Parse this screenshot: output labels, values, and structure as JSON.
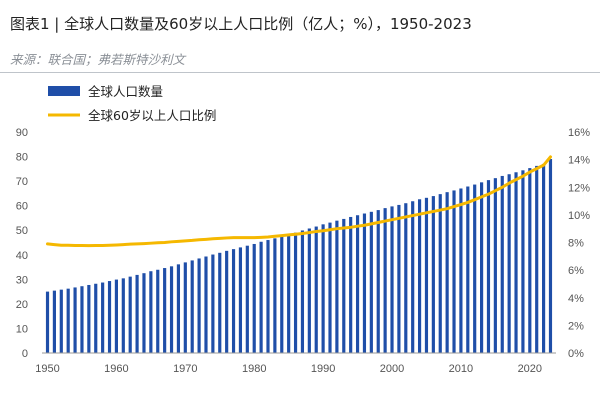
{
  "header": {
    "title": "图表1 | 全球人口数量及60岁以上人口比例（亿人；%），1950-2023",
    "source": "来源：联合国；弗若斯特沙利文"
  },
  "colors": {
    "bar": "#1f4ea8",
    "line": "#f5b800",
    "axis": "#999999",
    "rule": "#bfc4ca"
  },
  "chart_data": {
    "type": "bar",
    "grid": false,
    "legend_position": "top-left",
    "x": [
      1950,
      1951,
      1952,
      1953,
      1954,
      1955,
      1956,
      1957,
      1958,
      1959,
      1960,
      1961,
      1962,
      1963,
      1964,
      1965,
      1966,
      1967,
      1968,
      1969,
      1970,
      1971,
      1972,
      1973,
      1974,
      1975,
      1976,
      1977,
      1978,
      1979,
      1980,
      1981,
      1982,
      1983,
      1984,
      1985,
      1986,
      1987,
      1988,
      1989,
      1990,
      1991,
      1992,
      1993,
      1994,
      1995,
      1996,
      1997,
      1998,
      1999,
      2000,
      2001,
      2002,
      2003,
      2004,
      2005,
      2006,
      2007,
      2008,
      2009,
      2010,
      2011,
      2012,
      2013,
      2014,
      2015,
      2016,
      2017,
      2018,
      2019,
      2020,
      2021,
      2022,
      2023
    ],
    "x_ticks": [
      "1950",
      "1960",
      "1970",
      "1980",
      "1990",
      "2000",
      "2010",
      "2020"
    ],
    "x_range": [
      1949.2,
      2023.8
    ],
    "y_left": {
      "range": [
        0,
        90
      ],
      "ticks": [
        "0",
        "10",
        "20",
        "30",
        "40",
        "50",
        "60",
        "70",
        "80",
        "90"
      ]
    },
    "y_right": {
      "range": [
        0,
        16
      ],
      "ticks": [
        "0%",
        "2%",
        "4%",
        "6%",
        "8%",
        "10%",
        "12%",
        "14%",
        "16%"
      ]
    },
    "series": [
      {
        "name": "全球人口数量",
        "type": "bar",
        "axis": "left",
        "values": [
          25.0,
          25.4,
          25.8,
          26.2,
          26.7,
          27.2,
          27.7,
          28.2,
          28.7,
          29.3,
          29.9,
          30.4,
          31.1,
          31.8,
          32.5,
          33.3,
          33.9,
          34.6,
          35.3,
          36.1,
          36.9,
          37.7,
          38.5,
          39.3,
          40.1,
          40.8,
          41.6,
          42.3,
          43.0,
          43.7,
          44.4,
          45.3,
          46.0,
          46.7,
          47.5,
          48.3,
          49.0,
          49.9,
          50.7,
          51.5,
          52.4,
          53.1,
          53.9,
          54.6,
          55.4,
          56.1,
          56.8,
          57.5,
          58.2,
          59.0,
          59.7,
          60.3,
          61.0,
          61.8,
          62.6,
          63.2,
          63.9,
          64.7,
          65.5,
          66.2,
          67.0,
          67.8,
          68.6,
          69.5,
          70.4,
          71.2,
          72.1,
          72.8,
          73.6,
          74.4,
          75.3,
          76.2,
          77.0,
          79.0
        ]
      },
      {
        "name": "全球60岁以上人口比例",
        "type": "line",
        "axis": "right",
        "values": [
          7.9,
          7.85,
          7.8,
          7.8,
          7.78,
          7.78,
          7.77,
          7.78,
          7.78,
          7.8,
          7.82,
          7.85,
          7.88,
          7.9,
          7.92,
          7.95,
          7.98,
          8.0,
          8.05,
          8.08,
          8.12,
          8.15,
          8.2,
          8.23,
          8.27,
          8.3,
          8.33,
          8.35,
          8.35,
          8.35,
          8.35,
          8.37,
          8.4,
          8.45,
          8.5,
          8.55,
          8.6,
          8.65,
          8.72,
          8.8,
          8.85,
          8.92,
          9.0,
          9.05,
          9.1,
          9.18,
          9.25,
          9.35,
          9.45,
          9.55,
          9.65,
          9.75,
          9.85,
          9.95,
          10.05,
          10.15,
          10.25,
          10.35,
          10.45,
          10.6,
          10.75,
          10.9,
          11.1,
          11.3,
          11.5,
          11.75,
          12.0,
          12.3,
          12.55,
          12.8,
          13.1,
          13.35,
          13.6,
          14.2
        ]
      }
    ]
  }
}
